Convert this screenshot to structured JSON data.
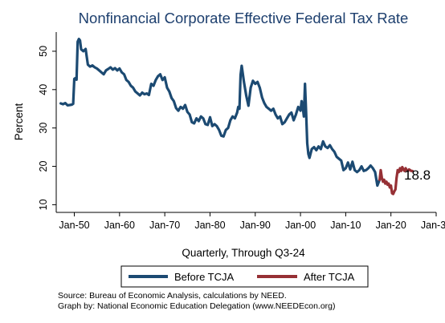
{
  "chart_data": {
    "type": "line",
    "title": "Nonfinancial Corporate Effective Federal Tax Rate",
    "xlabel": "Quarterly, Through Q3-24",
    "ylabel": "Percent",
    "x_unit": "year",
    "xlim": [
      1946,
      2030
    ],
    "ylim": [
      8,
      55
    ],
    "x_ticks": [
      1950,
      1960,
      1970,
      1980,
      1990,
      2000,
      2010,
      2020,
      2030
    ],
    "x_tick_labels": [
      "Jan-50",
      "Jan-60",
      "Jan-70",
      "Jan-80",
      "Jan-90",
      "Jan-00",
      "Jan-10",
      "Jan-20",
      "Jan-30"
    ],
    "y_ticks": [
      10,
      20,
      30,
      40,
      50
    ],
    "grid": false,
    "legend_position": "bottom",
    "end_label": "18.8",
    "series": [
      {
        "name": "Before TCJA",
        "color": "#1c4a72",
        "x": [
          1947.0,
          1947.5,
          1948.0,
          1948.5,
          1949.0,
          1949.5,
          1949.75,
          1950.0,
          1950.25,
          1950.5,
          1950.75,
          1951.0,
          1951.25,
          1951.5,
          1952.0,
          1952.5,
          1953.0,
          1953.5,
          1954.0,
          1954.5,
          1955.0,
          1955.5,
          1956.0,
          1956.5,
          1957.0,
          1957.5,
          1958.0,
          1958.5,
          1959.0,
          1959.5,
          1960.0,
          1960.5,
          1961.0,
          1961.5,
          1962.0,
          1962.5,
          1963.0,
          1963.5,
          1964.0,
          1964.5,
          1965.0,
          1965.5,
          1966.0,
          1966.5,
          1967.0,
          1967.5,
          1968.0,
          1968.5,
          1969.0,
          1969.5,
          1970.0,
          1970.5,
          1971.0,
          1971.5,
          1972.0,
          1972.5,
          1973.0,
          1973.5,
          1974.0,
          1974.5,
          1975.0,
          1975.5,
          1976.0,
          1976.5,
          1977.0,
          1977.5,
          1978.0,
          1978.5,
          1979.0,
          1979.5,
          1980.0,
          1980.5,
          1981.0,
          1981.5,
          1982.0,
          1982.5,
          1983.0,
          1983.5,
          1984.0,
          1984.5,
          1985.0,
          1985.5,
          1986.0,
          1986.25,
          1986.5,
          1986.75,
          1987.0,
          1987.5,
          1988.0,
          1988.5,
          1989.0,
          1989.5,
          1990.0,
          1990.5,
          1991.0,
          1991.5,
          1992.0,
          1992.5,
          1993.0,
          1993.5,
          1994.0,
          1994.5,
          1995.0,
          1995.5,
          1996.0,
          1996.5,
          1997.0,
          1997.5,
          1998.0,
          1998.5,
          1999.0,
          1999.5,
          2000.0,
          2000.25,
          2000.5,
          2000.75,
          2001.0,
          2001.25,
          2001.5,
          2001.75,
          2002.0,
          2002.5,
          2003.0,
          2003.5,
          2004.0,
          2004.5,
          2005.0,
          2005.5,
          2006.0,
          2006.5,
          2007.0,
          2007.5,
          2008.0,
          2008.5,
          2009.0,
          2009.5,
          2010.0,
          2010.5,
          2011.0,
          2011.5,
          2012.0,
          2012.5,
          2013.0,
          2013.5,
          2014.0,
          2014.5,
          2015.0,
          2015.5,
          2016.0,
          2016.5,
          2017.0,
          2017.5
        ],
        "values": [
          36.4,
          36.2,
          36.5,
          35.9,
          36.0,
          36.1,
          36.3,
          42.8,
          43.0,
          42.6,
          52.5,
          53.2,
          52.8,
          50.5,
          50.0,
          50.6,
          46.5,
          46.0,
          46.3,
          45.8,
          45.5,
          45.0,
          44.5,
          44.0,
          45.0,
          45.4,
          45.8,
          45.2,
          45.6,
          45.0,
          45.5,
          44.5,
          44.0,
          42.5,
          42.0,
          41.0,
          40.5,
          39.5,
          39.0,
          38.5,
          39.2,
          38.8,
          39.0,
          38.6,
          41.5,
          41.0,
          42.5,
          43.5,
          44.0,
          42.5,
          43.2,
          40.5,
          39.5,
          37.8,
          37.0,
          35.2,
          34.5,
          35.5,
          35.0,
          36.0,
          34.2,
          33.5,
          31.5,
          31.2,
          32.5,
          31.8,
          33.0,
          32.5,
          31.0,
          30.8,
          32.8,
          30.5,
          31.0,
          30.5,
          29.5,
          28.0,
          27.8,
          29.5,
          30.0,
          32.0,
          33.0,
          32.5,
          34.0,
          35.5,
          35.0,
          43.8,
          46.2,
          42.0,
          38.5,
          35.8,
          40.5,
          42.3,
          41.5,
          42.0,
          40.5,
          38.0,
          36.5,
          35.5,
          35.0,
          34.5,
          35.0,
          33.5,
          32.5,
          33.0,
          31.0,
          31.5,
          32.5,
          33.5,
          34.0,
          32.0,
          33.5,
          35.5,
          34.5,
          37.0,
          35.5,
          33.0,
          41.5,
          34.0,
          26.0,
          23.2,
          22.2,
          24.5,
          25.0,
          24.2,
          25.2,
          24.5,
          26.5,
          25.2,
          24.8,
          25.5,
          24.5,
          23.8,
          22.5,
          22.0,
          21.5,
          19.0,
          19.5,
          21.0,
          19.2,
          21.2,
          19.0,
          18.5,
          19.0,
          20.0,
          18.8,
          19.0,
          19.5,
          20.2,
          19.5,
          18.5,
          15.0,
          16.5
        ]
      },
      {
        "name": "After TCJA",
        "color": "#963035",
        "x": [
          2017.5,
          2017.75,
          2018.0,
          2018.25,
          2018.5,
          2018.75,
          2019.0,
          2019.25,
          2019.5,
          2019.75,
          2020.0,
          2020.25,
          2020.5,
          2020.75,
          2021.0,
          2021.25,
          2021.5,
          2021.75,
          2022.0,
          2022.25,
          2022.5,
          2022.75,
          2023.0,
          2023.25,
          2023.5,
          2023.75,
          2024.0,
          2024.25,
          2024.5,
          2024.75
        ],
        "values": [
          16.5,
          19.0,
          17.0,
          16.0,
          16.5,
          15.5,
          16.0,
          15.2,
          15.5,
          14.5,
          15.0,
          13.0,
          12.8,
          13.5,
          14.0,
          17.0,
          19.0,
          18.5,
          19.5,
          18.8,
          19.8,
          19.2,
          18.8,
          19.5,
          19.0,
          18.8,
          19.2,
          19.0,
          18.8,
          18.8
        ]
      }
    ]
  },
  "source_line_1": "Source: Bureau of Economic Analysis, calculations by NEED.",
  "source_line_2": "Graph by: National Economic Education Delegation (www.NEEDEcon.org)"
}
